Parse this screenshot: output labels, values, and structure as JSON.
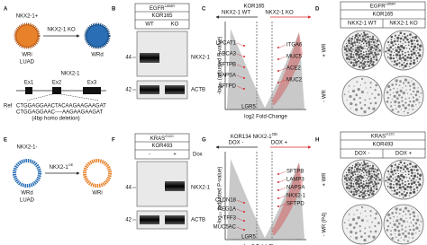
{
  "panel_labels": [
    "A",
    "B",
    "C",
    "D",
    "E",
    "F",
    "G",
    "H"
  ],
  "a": {
    "state": "NKX2-1+",
    "cell": "WRi",
    "type": "LUAD",
    "arrow": "NKX2-1 KO",
    "result": "WRd",
    "gene": "NKX2-1",
    "exons": [
      "Ex1",
      "Ex2",
      "Ex3"
    ],
    "ref": "Ref",
    "seq_ref": "CTGGAGGAACTACAAGAAGAAGAT",
    "seq_ko": "CTGGAGGAAC----AAGAAGAAGAT",
    "note": "(4bp homo deletion)"
  },
  "b": {
    "header": "EGFR",
    "superscript": "L858R",
    "line": "KOR165",
    "cols": [
      "WT",
      "KO"
    ],
    "sizes": [
      44,
      42
    ],
    "bands": [
      "NKX2-1",
      "ACTB"
    ]
  },
  "c": {
    "title": "KOR165",
    "left": "NKX2-1 WT",
    "right": "NKX2-1 KO",
    "ylabel": "-log₁₀ (adjusted P-value)",
    "xlabel": "log2 Fold-Change",
    "genes_left": [
      "LPCAT1",
      "ABCA3",
      "SFTPB",
      "NAPSA",
      "SFTPD"
    ],
    "genes_right": [
      "ITGA6",
      "MUC5",
      "ACE2",
      "MUC2"
    ],
    "bottom": "LGR5"
  },
  "d": {
    "header": "EGFR",
    "superscript": "L858R",
    "line": "KOR165",
    "cols": [
      "NKX2-1 WT",
      "NKX2-1 KO"
    ],
    "rows": [
      "+ WR",
      "- WR"
    ]
  },
  "e": {
    "state": "NKX2-1-",
    "cell": "WRd",
    "type": "LUAD",
    "arrow": "NKX2-1",
    "arrow_sup": "OE",
    "result": "WRi"
  },
  "f": {
    "header": "KRAS",
    "superscript": "G12C",
    "line": "KOR493",
    "treat": "Dox",
    "cols": [
      "-",
      "+"
    ],
    "sizes": [
      44,
      42
    ],
    "bands": [
      "NKX2-1",
      "ACTB"
    ]
  },
  "g": {
    "title": "KOR134 NKX2-1",
    "title_sup": "OE",
    "left": "DOX -",
    "right": "DOX +",
    "xlabel": "log2 Fold-Change",
    "ylabel": "-log₁₀ (adjusted P-value)",
    "genes_left": [
      "CLDN18",
      "REG1A",
      "TFF3",
      "MUC5AC"
    ],
    "genes_right": [
      "SFTPB",
      "LAMP3",
      "NAPSA",
      "NKX2-1",
      "SFTPD"
    ],
    "bottom": "LGR5"
  },
  "h": {
    "header": "KRAS",
    "superscript": "G12C",
    "line": "KOR493",
    "cols": [
      "DOX -",
      "DOX +"
    ],
    "rows": [
      "+ WR",
      "- WR (P4)"
    ]
  }
}
